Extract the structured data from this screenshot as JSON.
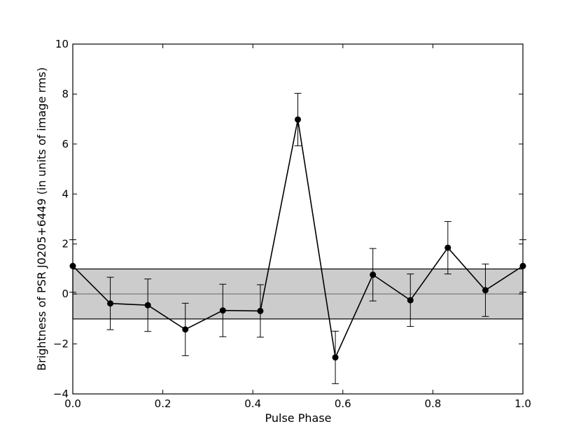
{
  "chart_data": {
    "type": "line",
    "title": "",
    "xlabel": "Pulse Phase",
    "ylabel": "Brightness of PSR J0205+6449 (in units of image rms)",
    "xlim": [
      0.0,
      1.0
    ],
    "ylim": [
      -4,
      10
    ],
    "xticks": [
      "0.0",
      "0.2",
      "0.4",
      "0.6",
      "0.8",
      "1.0"
    ],
    "yticks": [
      "−4",
      "−2",
      "0",
      "2",
      "4",
      "6",
      "8",
      "10"
    ],
    "grid": false,
    "legend": "none",
    "band": {
      "y_low": -1,
      "y_high": 1,
      "color": "#cccccc"
    },
    "zero_line_color": "#888888",
    "series": [
      {
        "x": [
          0.0,
          0.0833,
          0.1667,
          0.25,
          0.3333,
          0.4167,
          0.5,
          0.5833,
          0.6667,
          0.75,
          0.8333,
          0.9167,
          1.0
        ],
        "y": [
          1.12,
          -0.38,
          -0.45,
          -1.42,
          -0.66,
          -0.68,
          6.98,
          -2.54,
          0.77,
          -0.25,
          1.85,
          0.15,
          1.12
        ],
        "yerr": [
          1.05,
          1.05,
          1.05,
          1.05,
          1.05,
          1.05,
          1.05,
          1.05,
          1.05,
          1.05,
          1.05,
          1.05,
          1.05
        ],
        "color": "#000000"
      }
    ]
  }
}
